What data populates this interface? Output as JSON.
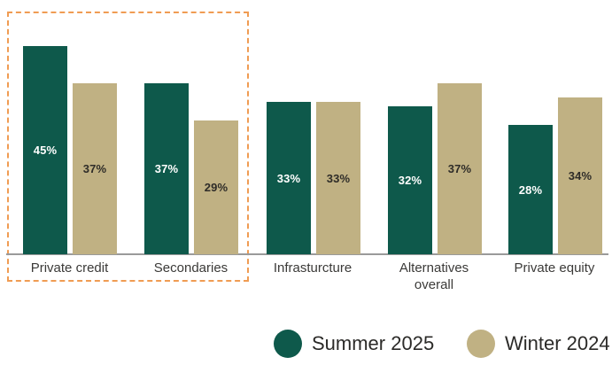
{
  "chart_data": {
    "type": "bar",
    "categories": [
      "Private credit",
      "Secondaries",
      "Infrasturcture",
      "Alternatives overall",
      "Private equity"
    ],
    "series": [
      {
        "name": "Summer 2025",
        "color": "#0E594B",
        "label_color": "#FFFFFF",
        "values": [
          45,
          37,
          33,
          32,
          28
        ]
      },
      {
        "name": "Winter 2024",
        "color": "#C0B183",
        "label_color": "#2E2C28",
        "values": [
          37,
          29,
          33,
          37,
          34
        ]
      }
    ],
    "value_suffix": "%",
    "title": "",
    "xlabel": "",
    "ylabel": "",
    "ylim": [
      0,
      50
    ],
    "grid": false,
    "axis_line_color": "#9A9A9A",
    "legend_position": "bottom",
    "highlight_box": {
      "encloses": [
        "Private credit",
        "Secondaries"
      ],
      "border_style": "dashed",
      "border_color": "#F09C53"
    }
  }
}
